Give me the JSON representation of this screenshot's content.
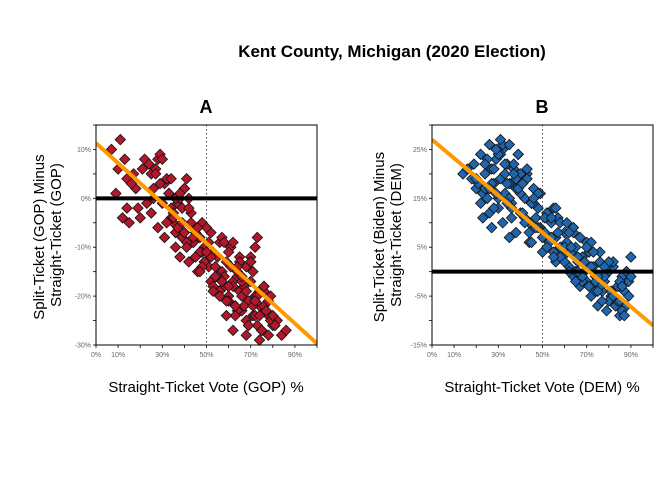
{
  "figure": {
    "title": "Kent County, Michigan (2020 Election)"
  },
  "chart_data": [
    {
      "type": "scatter",
      "title": "A",
      "xlabel": "Straight-Ticket Vote (GOP) %",
      "ylabel_lines": [
        "Split-Ticket (GOP) Minus",
        "Straight-Ticket (GOP)"
      ],
      "xlim": [
        0,
        100
      ],
      "ylim": [
        -30,
        15
      ],
      "xticks": [
        0,
        10,
        30,
        50,
        70,
        90
      ],
      "xtick_labels": [
        "0%",
        "10%",
        "30%",
        "50%",
        "70%",
        "90%"
      ],
      "yticks": [
        -30,
        -20,
        -10,
        0,
        10
      ],
      "ytick_labels": [
        "-30%",
        "-20%",
        "-10%",
        "0%",
        "10%"
      ],
      "vline": 50,
      "hline": 0,
      "trend": {
        "slope": -0.41,
        "intercept": 11.3
      },
      "point_color": "#b2182b",
      "trend_color": "#ff9900",
      "series": [
        {
          "x": [
            7,
            10,
            11,
            13,
            14,
            17,
            18,
            12,
            15,
            16,
            19,
            21,
            9,
            14,
            20,
            22,
            24,
            25,
            27,
            28,
            29,
            30,
            23,
            26,
            31,
            32,
            33,
            34,
            35,
            36,
            37,
            38,
            39,
            40,
            41,
            42,
            43,
            44,
            45,
            46,
            47,
            48,
            49,
            51,
            52,
            53,
            54,
            55,
            56,
            57,
            58,
            59,
            60,
            61,
            62,
            63,
            64,
            65,
            66,
            67,
            68,
            69,
            70,
            71,
            72,
            73,
            74,
            75,
            76,
            77,
            78,
            80,
            82,
            84,
            86,
            25,
            28,
            31,
            34,
            36,
            38,
            40,
            42,
            44,
            46,
            48,
            50,
            52,
            54,
            56,
            58,
            60,
            62,
            64,
            66,
            68,
            70,
            72,
            74,
            76,
            30,
            33,
            35,
            37,
            39,
            41,
            43,
            45,
            47,
            49,
            51,
            53,
            55,
            57,
            59,
            61,
            63,
            65,
            67,
            69,
            71,
            73,
            75,
            77,
            79,
            32,
            36,
            40,
            44,
            48,
            52,
            56,
            60,
            64,
            68,
            72,
            76,
            80,
            34,
            38,
            42,
            46,
            50,
            54,
            58,
            62,
            66,
            70,
            74,
            78,
            26,
            29,
            35,
            41,
            47,
            53,
            59,
            65,
            71,
            73,
            75,
            79,
            27,
            39,
            45,
            57,
            63,
            69,
            60,
            62,
            64,
            66,
            68,
            70,
            72,
            74,
            76,
            78,
            81
          ],
          "y": [
            10,
            6,
            12,
            8,
            4,
            5,
            2,
            -4,
            -5,
            3,
            -2,
            6,
            1,
            -2,
            -4,
            8,
            7,
            5,
            6,
            8,
            9,
            8,
            -1,
            2,
            3,
            4,
            1,
            -2,
            -5,
            -7,
            -1,
            0,
            -8,
            2,
            4,
            0,
            -3,
            -9,
            -12,
            -6,
            -8,
            -5,
            -10,
            -14,
            -7,
            -11,
            -16,
            -12,
            -9,
            -15,
            -18,
            -13,
            -20,
            -14,
            -17,
            -22,
            -16,
            -19,
            -23,
            -18,
            -25,
            -21,
            -17,
            -24,
            -20,
            -26,
            -22,
            -27,
            -18,
            -23,
            -24,
            -26,
            -25,
            -28,
            -27,
            -3,
            -6,
            -8,
            -4,
            -10,
            -12,
            -7,
            -13,
            -9,
            -15,
            -11,
            -6,
            -17,
            -14,
            -19,
            -16,
            -21,
            -18,
            -23,
            -20,
            -14,
            -12,
            -24,
            -19,
            -22,
            -1,
            1,
            -3,
            -6,
            -2,
            -9,
            -5,
            -7,
            -11,
            -13,
            -9,
            -18,
            -16,
            -8,
            -21,
            -10,
            -24,
            -12,
            -22,
            -26,
            -15,
            -20,
            -27,
            -23,
            -25,
            -5,
            0,
            2,
            -8,
            -14,
            -12,
            -20,
            -18,
            -15,
            -28,
            -10,
            -19,
            -24,
            4,
            1,
            -2,
            -6,
            -11,
            -16,
            -9,
            -27,
            -17,
            -13,
            -29,
            -21,
            0,
            3,
            -4,
            -10,
            -15,
            -19,
            -24,
            -13,
            -22,
            -8,
            -27,
            -20,
            5,
            -5,
            -12,
            -17,
            -22,
            -26,
            -11,
            -9,
            -14,
            -16,
            -19,
            -13,
            -21,
            -24,
            -18,
            -28,
            -26
          ]
        }
      ]
    },
    {
      "type": "scatter",
      "title": "B",
      "xlabel": "Straight-Ticket Vote (DEM) %",
      "ylabel_lines": [
        "Split-Ticket (Biden) Minus",
        "Straight-Ticket (DEM)"
      ],
      "xlim": [
        0,
        100
      ],
      "ylim": [
        -15,
        30
      ],
      "xticks": [
        0,
        10,
        30,
        50,
        70,
        90
      ],
      "xtick_labels": [
        "0%",
        "10%",
        "30%",
        "50%",
        "70%",
        "90%"
      ],
      "yticks": [
        -15,
        -5,
        5,
        15,
        25
      ],
      "ytick_labels": [
        "-15%",
        "-5%",
        "5%",
        "15%",
        "25%"
      ],
      "vline": 50,
      "hline": 0,
      "trend": {
        "slope": -0.38,
        "intercept": 27
      },
      "point_color": "#2166ac",
      "trend_color": "#ff9900",
      "series": [
        {
          "x": [
            14,
            16,
            18,
            19,
            20,
            21,
            22,
            23,
            24,
            25,
            26,
            27,
            28,
            29,
            30,
            31,
            32,
            33,
            34,
            35,
            36,
            37,
            38,
            39,
            40,
            41,
            42,
            43,
            44,
            45,
            46,
            47,
            48,
            49,
            51,
            52,
            53,
            54,
            55,
            56,
            57,
            58,
            59,
            60,
            61,
            62,
            63,
            64,
            65,
            66,
            67,
            68,
            69,
            70,
            71,
            72,
            73,
            74,
            75,
            76,
            77,
            78,
            79,
            80,
            81,
            82,
            83,
            84,
            85,
            86,
            87,
            88,
            89,
            90,
            20,
            22,
            24,
            26,
            28,
            30,
            32,
            34,
            36,
            38,
            40,
            42,
            44,
            46,
            48,
            50,
            52,
            54,
            56,
            58,
            60,
            62,
            64,
            66,
            68,
            70,
            72,
            74,
            76,
            78,
            80,
            82,
            84,
            86,
            88,
            25,
            27,
            29,
            31,
            33,
            35,
            37,
            39,
            41,
            43,
            45,
            47,
            49,
            51,
            53,
            55,
            57,
            59,
            61,
            63,
            65,
            67,
            69,
            71,
            73,
            75,
            77,
            79,
            81,
            83,
            85,
            87,
            89,
            24,
            28,
            32,
            36,
            40,
            44,
            48,
            52,
            56,
            60,
            64,
            68,
            72,
            76,
            80,
            84,
            88,
            26,
            30,
            34,
            38,
            42,
            46,
            50,
            54,
            58,
            62,
            66,
            70,
            74,
            78,
            82,
            86,
            90,
            29,
            31,
            33,
            35,
            37,
            39,
            41,
            43,
            23,
            27,
            35,
            45,
            55,
            65,
            75,
            85
          ],
          "y": [
            20,
            21,
            19,
            22,
            17,
            18,
            24,
            16,
            20,
            15,
            26,
            21,
            18,
            23,
            13,
            19,
            25,
            16,
            22,
            18,
            14,
            21,
            17,
            24,
            12,
            19,
            15,
            20,
            10,
            14,
            17,
            11,
            13,
            9,
            8,
            12,
            6,
            10,
            4,
            7,
            11,
            5,
            3,
            8,
            6,
            1,
            4,
            -1,
            5,
            2,
            -3,
            3,
            0,
            -2,
            4,
            -5,
            1,
            -1,
            -7,
            2,
            -4,
            -2,
            -8,
            0,
            -5,
            1,
            -6,
            -3,
            -9,
            -1,
            -4,
            -7,
            -2,
            3,
            19,
            14,
            17,
            12,
            21,
            15,
            10,
            18,
            13,
            8,
            16,
            11,
            6,
            14,
            9,
            4,
            12,
            7,
            2,
            10,
            5,
            0,
            8,
            3,
            -2,
            6,
            1,
            -4,
            4,
            -1,
            -6,
            2,
            -3,
            -8,
            0,
            23,
            18,
            16,
            24,
            20,
            15,
            22,
            17,
            12,
            19,
            14,
            9,
            16,
            11,
            6,
            13,
            8,
            3,
            10,
            5,
            0,
            7,
            2,
            -3,
            4,
            -1,
            -6,
            1,
            -4,
            -7,
            -2,
            -9,
            -5,
            22,
            13,
            26,
            11,
            20,
            8,
            16,
            5,
            13,
            2,
            9,
            -1,
            6,
            -3,
            2,
            -6,
            0,
            17,
            24,
            14,
            19,
            10,
            15,
            7,
            11,
            3,
            8,
            0,
            5,
            -2,
            1,
            -5,
            -3,
            -1,
            25,
            27,
            22,
            26,
            20,
            24,
            18,
            21,
            11,
            9,
            7,
            6,
            3,
            -2,
            -4,
            -6
          ]
        }
      ]
    }
  ]
}
